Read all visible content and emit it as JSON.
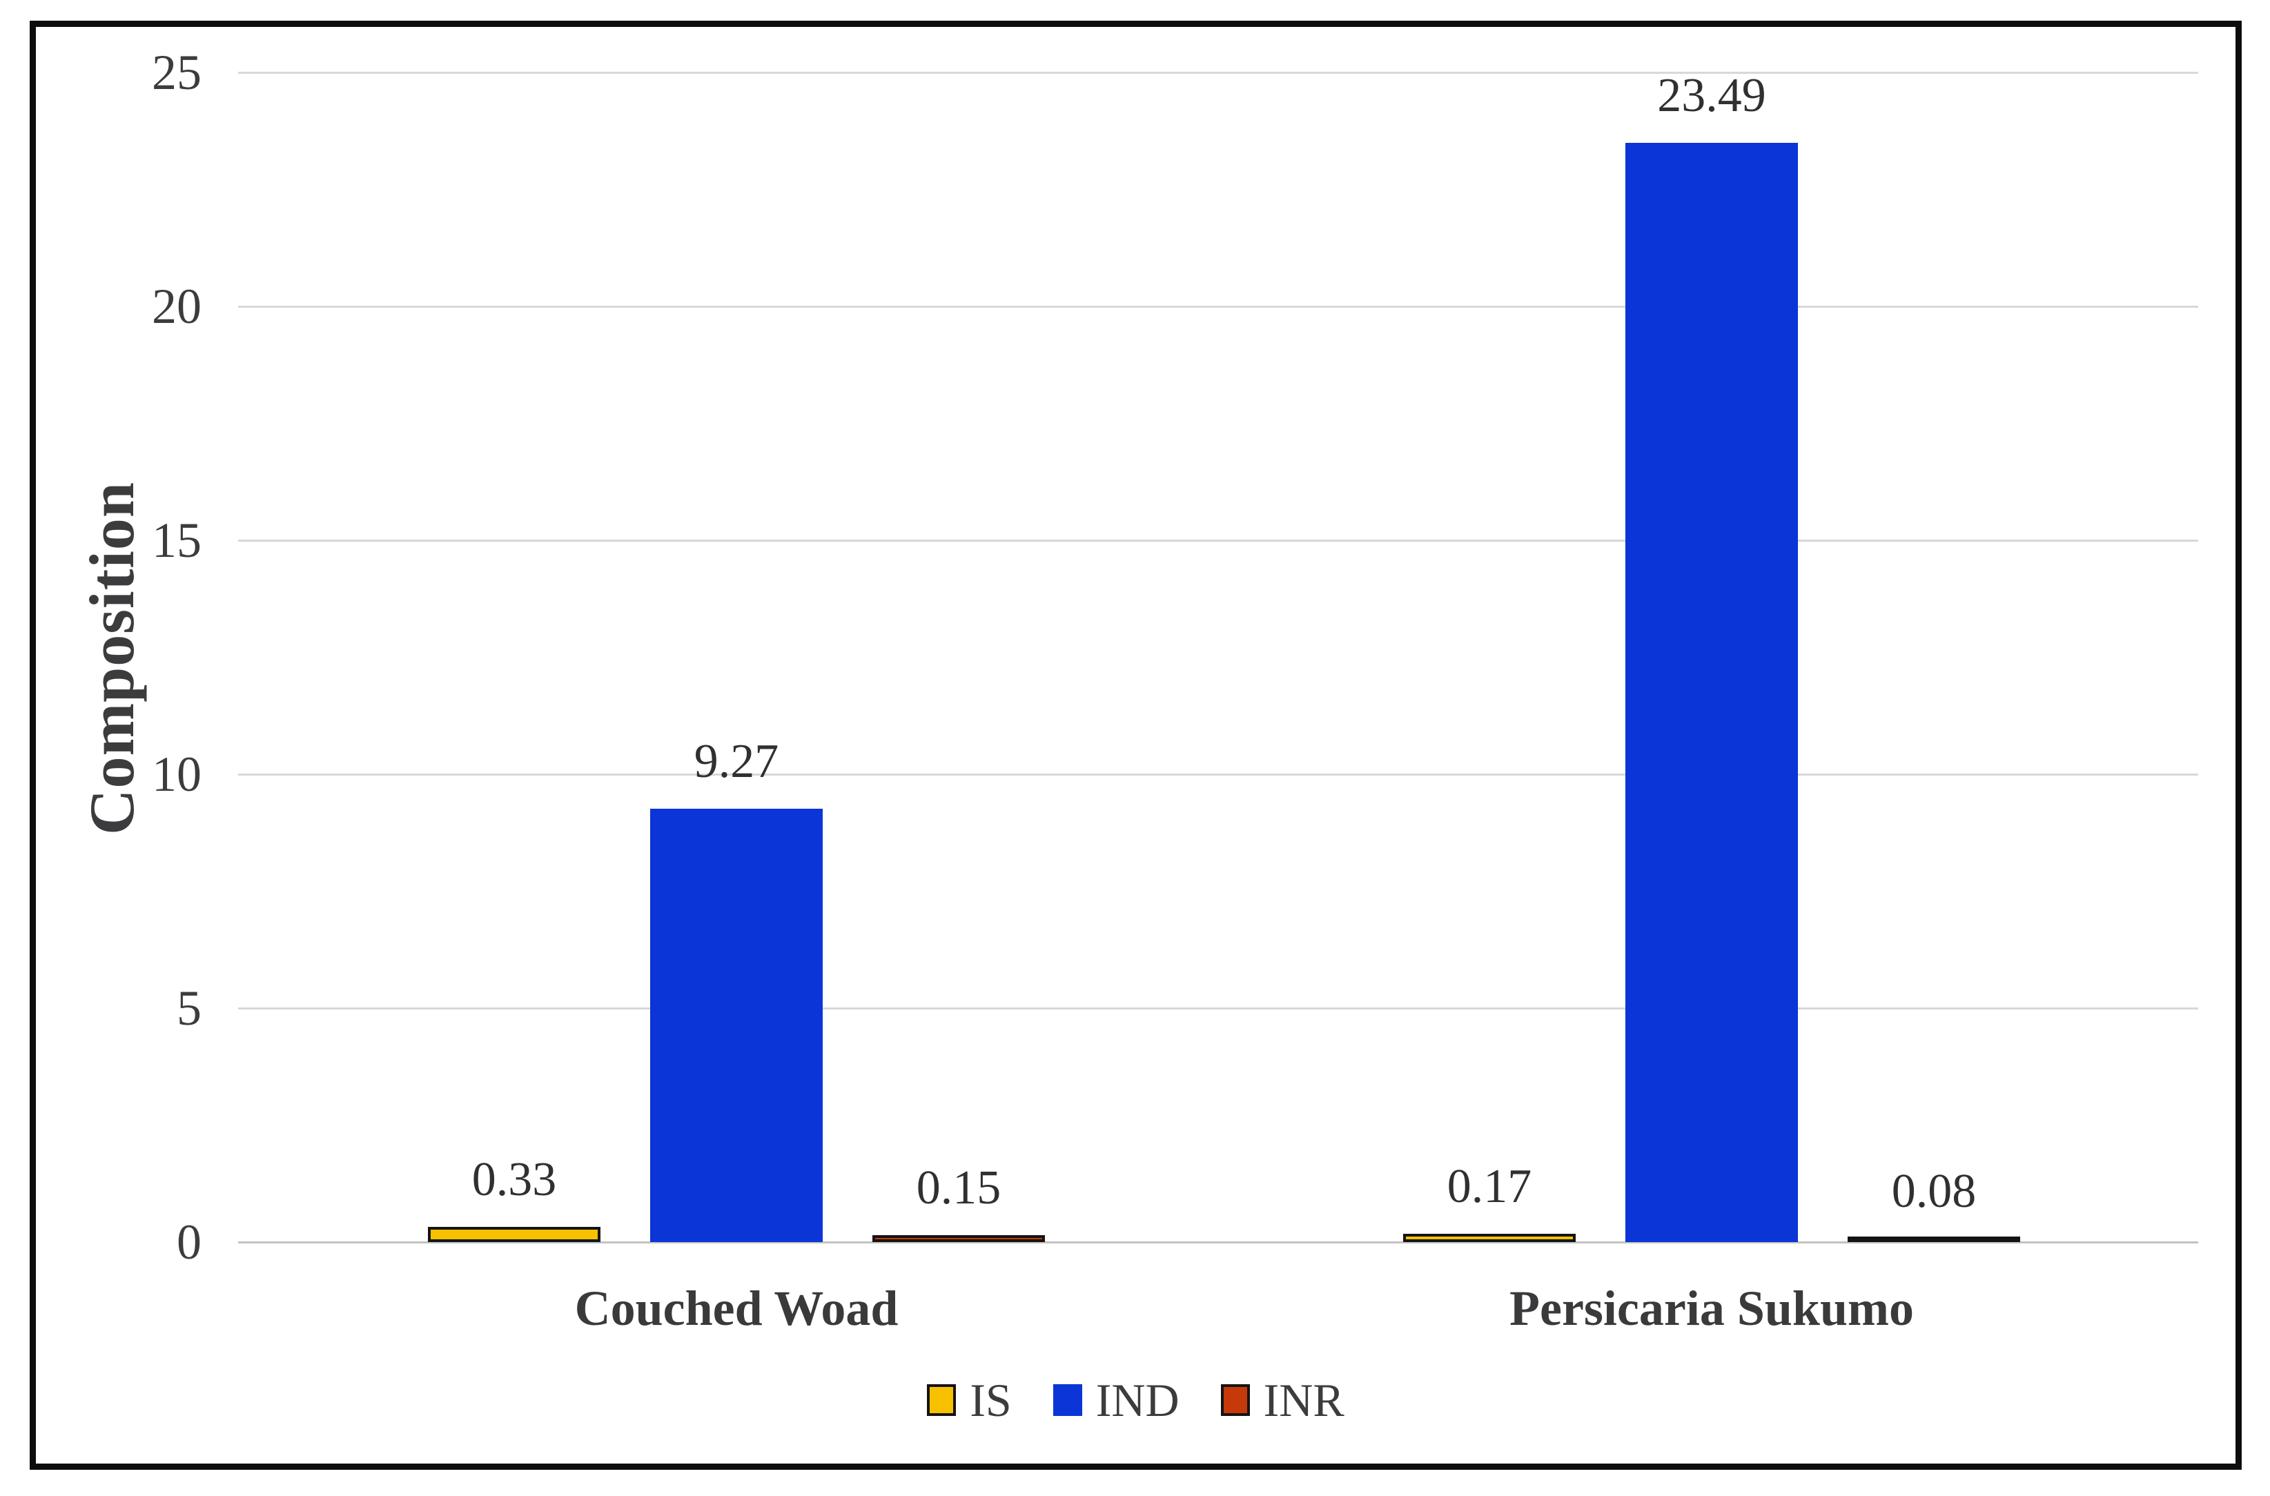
{
  "chart_data": {
    "type": "bar",
    "title": "",
    "xlabel": "",
    "ylabel": "Composition",
    "categories": [
      "Couched Woad",
      "Persicaria Sukumo"
    ],
    "series": [
      {
        "name": "IS",
        "color": "#f7c100",
        "outlined": true,
        "values": [
          0.33,
          0.17
        ],
        "labels": [
          "0.33",
          "0.17"
        ]
      },
      {
        "name": "IND",
        "color": "#0b35d6",
        "outlined": false,
        "values": [
          9.27,
          23.49
        ],
        "labels": [
          "9.27",
          "23.49"
        ]
      },
      {
        "name": "INR",
        "color": "#c53a08",
        "outlined": true,
        "values": [
          0.15,
          0.08
        ],
        "labels": [
          "0.15",
          "0.08"
        ]
      }
    ],
    "ylim": [
      0,
      25
    ],
    "ytick_step": 5,
    "yticks": [
      "0",
      "5",
      "10",
      "15",
      "20",
      "25"
    ],
    "grid": true,
    "legend_position": "bottom",
    "legend_entries": [
      "IS",
      "IND",
      "INR"
    ]
  },
  "style": {
    "gridline_color": "#d8d8d8",
    "axis_line_color": "#c2c2c2",
    "bar_outline_color": "#141414",
    "frame_border_color": "#0d0d0d",
    "text_color": "#3c3c3e",
    "data_label_color": "#303032",
    "background_color": "#ffffff"
  }
}
